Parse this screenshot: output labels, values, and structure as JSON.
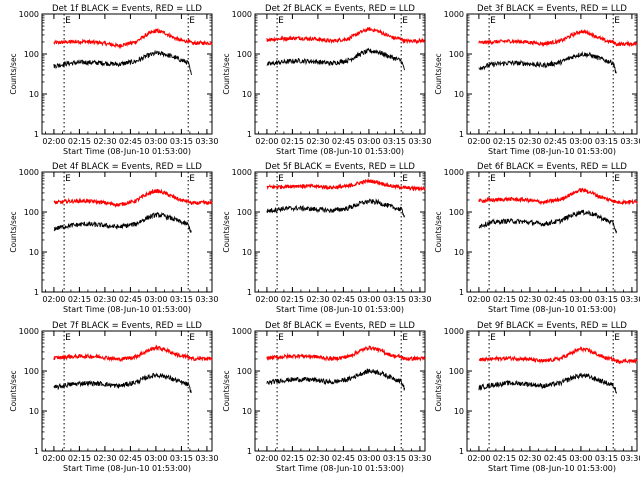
{
  "chart_data": [
    {
      "type": "line",
      "title": "Det 1f BLACK = Events, RED = LLD",
      "ylabel": "Counts/sec",
      "xlabel": "Start Time (08-Jun-10 01:53:00)",
      "yscale": "log",
      "ylim": [
        1,
        1000
      ],
      "ytick_labels": [
        "1",
        "10",
        "100",
        "1000"
      ],
      "xtick_labels": [
        "02:00",
        "02:15",
        "02:30",
        "02:45",
        "03:00",
        "03:15",
        "03:30"
      ],
      "xtick_minutes": [
        7,
        22,
        37,
        52,
        67,
        82,
        97
      ],
      "xlim_minutes": [
        0,
        100
      ],
      "markers": [
        {
          "minute": 13,
          "label": "E"
        },
        {
          "minute": 86,
          "label": "E"
        }
      ],
      "series": [
        {
          "color": "#ff0000",
          "x_minutes": [
            7,
            15,
            25,
            35,
            45,
            55,
            62,
            67,
            72,
            78,
            82,
            86,
            88,
            95,
            100
          ],
          "values": [
            190,
            200,
            205,
            190,
            160,
            200,
            310,
            380,
            340,
            250,
            215,
            210,
            185,
            190,
            190
          ]
        },
        {
          "color": "#000000",
          "x_minutes": [
            7,
            15,
            25,
            35,
            45,
            55,
            62,
            67,
            72,
            78,
            82,
            86,
            88
          ],
          "values": [
            50,
            58,
            62,
            60,
            55,
            65,
            90,
            105,
            100,
            82,
            70,
            60,
            28
          ]
        }
      ]
    },
    {
      "type": "line",
      "title": "Det 2f BLACK = Events, RED = LLD",
      "ylabel": "Counts/sec",
      "xlabel": "Start Time (08-Jun-10 01:53:00)",
      "yscale": "log",
      "ylim": [
        1,
        1000
      ],
      "ytick_labels": [
        "1",
        "10",
        "100",
        "1000"
      ],
      "xtick_labels": [
        "02:00",
        "02:15",
        "02:30",
        "02:45",
        "03:00",
        "03:15",
        "03:30"
      ],
      "xtick_minutes": [
        7,
        22,
        37,
        52,
        67,
        82,
        97
      ],
      "xlim_minutes": [
        0,
        100
      ],
      "markers": [
        {
          "minute": 13,
          "label": "E"
        },
        {
          "minute": 86,
          "label": "E"
        }
      ],
      "series": [
        {
          "color": "#ff0000",
          "x_minutes": [
            7,
            15,
            25,
            35,
            45,
            55,
            62,
            67,
            72,
            78,
            82,
            86,
            88,
            95,
            100
          ],
          "values": [
            230,
            240,
            250,
            240,
            210,
            240,
            350,
            420,
            380,
            290,
            250,
            240,
            210,
            215,
            215
          ]
        },
        {
          "color": "#000000",
          "x_minutes": [
            7,
            15,
            25,
            35,
            45,
            55,
            62,
            67,
            72,
            78,
            82,
            86,
            88
          ],
          "values": [
            55,
            62,
            68,
            65,
            58,
            70,
            100,
            120,
            115,
            90,
            78,
            68,
            40
          ]
        }
      ]
    },
    {
      "type": "line",
      "title": "Det 3f BLACK = Events, RED = LLD",
      "ylabel": "Counts/sec",
      "xlabel": "Start Time (08-Jun-10 01:53:00)",
      "yscale": "log",
      "ylim": [
        1,
        1000
      ],
      "ytick_labels": [
        "1",
        "10",
        "100",
        "1000"
      ],
      "xtick_labels": [
        "02:00",
        "02:15",
        "02:30",
        "02:45",
        "03:00",
        "03:15",
        "03:30"
      ],
      "xtick_minutes": [
        7,
        22,
        37,
        52,
        67,
        82,
        97
      ],
      "xlim_minutes": [
        0,
        100
      ],
      "markers": [
        {
          "minute": 13,
          "label": "E"
        },
        {
          "minute": 86,
          "label": "E"
        }
      ],
      "series": [
        {
          "color": "#ff0000",
          "x_minutes": [
            7,
            15,
            25,
            35,
            45,
            55,
            62,
            67,
            72,
            78,
            82,
            86,
            88,
            95,
            100
          ],
          "values": [
            190,
            200,
            210,
            200,
            180,
            210,
            300,
            370,
            330,
            250,
            210,
            200,
            175,
            180,
            180
          ]
        },
        {
          "color": "#000000",
          "x_minutes": [
            7,
            15,
            25,
            35,
            45,
            55,
            62,
            67,
            72,
            78,
            82,
            86,
            88
          ],
          "values": [
            45,
            55,
            60,
            58,
            52,
            62,
            85,
            100,
            95,
            78,
            68,
            60,
            32
          ]
        }
      ]
    },
    {
      "type": "line",
      "title": "Det 4f BLACK = Events, RED = LLD",
      "ylabel": "Counts/sec",
      "xlabel": "Start Time (08-Jun-10 01:53:00)",
      "yscale": "log",
      "ylim": [
        1,
        1000
      ],
      "ytick_labels": [
        "1",
        "10",
        "100",
        "1000"
      ],
      "xtick_labels": [
        "02:00",
        "02:15",
        "02:30",
        "02:45",
        "03:00",
        "03:15",
        "03:30"
      ],
      "xtick_minutes": [
        7,
        22,
        37,
        52,
        67,
        82,
        97
      ],
      "xlim_minutes": [
        0,
        100
      ],
      "markers": [
        {
          "minute": 13,
          "label": "E"
        },
        {
          "minute": 86,
          "label": "E"
        }
      ],
      "series": [
        {
          "color": "#ff0000",
          "x_minutes": [
            7,
            15,
            25,
            35,
            45,
            55,
            62,
            67,
            72,
            78,
            82,
            86,
            88,
            95,
            100
          ],
          "values": [
            170,
            185,
            190,
            175,
            150,
            190,
            280,
            340,
            300,
            230,
            195,
            185,
            165,
            170,
            165
          ]
        },
        {
          "color": "#000000",
          "x_minutes": [
            7,
            15,
            25,
            35,
            45,
            55,
            62,
            67,
            72,
            78,
            82,
            86,
            88
          ],
          "values": [
            38,
            45,
            50,
            47,
            42,
            50,
            72,
            85,
            80,
            65,
            55,
            48,
            30
          ]
        }
      ]
    },
    {
      "type": "line",
      "title": "Det 5f BLACK = Events, RED = LLD",
      "ylabel": "Counts/sec",
      "xlabel": "Start Time (08-Jun-10 01:53:00)",
      "yscale": "log",
      "ylim": [
        1,
        1000
      ],
      "ytick_labels": [
        "1",
        "10",
        "100",
        "1000"
      ],
      "xtick_labels": [
        "02:00",
        "02:15",
        "02:30",
        "02:45",
        "03:00",
        "03:15",
        "03:30"
      ],
      "xtick_minutes": [
        7,
        22,
        37,
        52,
        67,
        82,
        97
      ],
      "xlim_minutes": [
        0,
        100
      ],
      "markers": [
        {
          "minute": 13,
          "label": "E"
        },
        {
          "minute": 86,
          "label": "E"
        }
      ],
      "series": [
        {
          "color": "#ff0000",
          "x_minutes": [
            7,
            15,
            25,
            35,
            45,
            55,
            62,
            67,
            72,
            78,
            82,
            86,
            88,
            95,
            100
          ],
          "values": [
            420,
            430,
            450,
            440,
            410,
            440,
            540,
            600,
            560,
            470,
            430,
            420,
            400,
            390,
            385
          ]
        },
        {
          "color": "#000000",
          "x_minutes": [
            7,
            15,
            25,
            35,
            45,
            55,
            62,
            67,
            72,
            78,
            82,
            86,
            88
          ],
          "values": [
            105,
            120,
            125,
            118,
            108,
            125,
            165,
            185,
            175,
            145,
            128,
            115,
            80
          ]
        }
      ]
    },
    {
      "type": "line",
      "title": "Det 6f BLACK = Events, RED = LLD",
      "ylabel": "Counts/sec",
      "xlabel": "Start Time (08-Jun-10 01:53:00)",
      "yscale": "log",
      "ylim": [
        1,
        1000
      ],
      "ytick_labels": [
        "1",
        "10",
        "100",
        "1000"
      ],
      "xtick_labels": [
        "02:00",
        "02:15",
        "02:30",
        "02:45",
        "03:00",
        "03:15",
        "03:30"
      ],
      "xtick_minutes": [
        7,
        22,
        37,
        52,
        67,
        82,
        97
      ],
      "xlim_minutes": [
        0,
        100
      ],
      "markers": [
        {
          "minute": 13,
          "label": "E"
        },
        {
          "minute": 86,
          "label": "E"
        }
      ],
      "series": [
        {
          "color": "#ff0000",
          "x_minutes": [
            7,
            15,
            25,
            35,
            45,
            55,
            62,
            67,
            72,
            78,
            82,
            86,
            88,
            95,
            100
          ],
          "values": [
            190,
            200,
            210,
            200,
            175,
            205,
            290,
            360,
            320,
            245,
            210,
            195,
            175,
            180,
            175
          ]
        },
        {
          "color": "#000000",
          "x_minutes": [
            7,
            15,
            25,
            35,
            45,
            55,
            62,
            67,
            72,
            78,
            82,
            86,
            88
          ],
          "values": [
            45,
            55,
            60,
            56,
            50,
            60,
            85,
            100,
            95,
            75,
            62,
            52,
            30
          ]
        }
      ]
    },
    {
      "type": "line",
      "title": "Det 7f BLACK = Events, RED = LLD",
      "ylabel": "Counts/sec",
      "xlabel": "Start Time (08-Jun-10 01:53:00)",
      "yscale": "log",
      "ylim": [
        1,
        1000
      ],
      "ytick_labels": [
        "1",
        "10",
        "100",
        "1000"
      ],
      "xtick_labels": [
        "02:00",
        "02:15",
        "02:30",
        "02:45",
        "03:00",
        "03:15",
        "03:30"
      ],
      "xtick_minutes": [
        7,
        22,
        37,
        52,
        67,
        82,
        97
      ],
      "xlim_minutes": [
        0,
        100
      ],
      "markers": [
        {
          "minute": 13,
          "label": "E"
        },
        {
          "minute": 86,
          "label": "E"
        }
      ],
      "series": [
        {
          "color": "#ff0000",
          "x_minutes": [
            7,
            15,
            25,
            35,
            45,
            55,
            62,
            67,
            72,
            78,
            82,
            86,
            88,
            95,
            100
          ],
          "values": [
            210,
            225,
            235,
            225,
            195,
            225,
            320,
            390,
            350,
            270,
            235,
            225,
            200,
            205,
            205
          ]
        },
        {
          "color": "#000000",
          "x_minutes": [
            7,
            15,
            25,
            35,
            45,
            55,
            62,
            67,
            72,
            78,
            82,
            86,
            88
          ],
          "values": [
            38,
            45,
            50,
            48,
            42,
            52,
            70,
            80,
            75,
            60,
            52,
            45,
            28
          ]
        }
      ]
    },
    {
      "type": "line",
      "title": "Det 8f BLACK = Events, RED = LLD",
      "ylabel": "Counts/sec",
      "xlabel": "Start Time (08-Jun-10 01:53:00)",
      "yscale": "log",
      "ylim": [
        1,
        1000
      ],
      "ytick_labels": [
        "1",
        "10",
        "100",
        "1000"
      ],
      "xtick_labels": [
        "02:00",
        "02:15",
        "02:30",
        "02:45",
        "03:00",
        "03:15",
        "03:30"
      ],
      "xtick_minutes": [
        7,
        22,
        37,
        52,
        67,
        82,
        97
      ],
      "xlim_minutes": [
        0,
        100
      ],
      "markers": [
        {
          "minute": 13,
          "label": "E"
        },
        {
          "minute": 86,
          "label": "E"
        }
      ],
      "series": [
        {
          "color": "#ff0000",
          "x_minutes": [
            7,
            15,
            25,
            35,
            45,
            55,
            62,
            67,
            72,
            78,
            82,
            86,
            88,
            95,
            100
          ],
          "values": [
            210,
            225,
            240,
            230,
            200,
            230,
            320,
            390,
            350,
            270,
            235,
            225,
            200,
            205,
            205
          ]
        },
        {
          "color": "#000000",
          "x_minutes": [
            7,
            15,
            25,
            35,
            45,
            55,
            62,
            67,
            72,
            78,
            82,
            86,
            88
          ],
          "values": [
            50,
            58,
            62,
            60,
            52,
            62,
            85,
            100,
            95,
            75,
            65,
            55,
            35
          ]
        }
      ]
    },
    {
      "type": "line",
      "title": "Det 9f BLACK = Events, RED = LLD",
      "ylabel": "Counts/sec",
      "xlabel": "Start Time (08-Jun-10 01:53:00)",
      "yscale": "log",
      "ylim": [
        1,
        1000
      ],
      "ytick_labels": [
        "1",
        "10",
        "100",
        "1000"
      ],
      "xtick_labels": [
        "02:00",
        "02:15",
        "02:30",
        "02:45",
        "03:00",
        "03:15",
        "03:30"
      ],
      "xtick_minutes": [
        7,
        22,
        37,
        52,
        67,
        82,
        97
      ],
      "xlim_minutes": [
        0,
        100
      ],
      "markers": [
        {
          "minute": 13,
          "label": "E"
        },
        {
          "minute": 86,
          "label": "E"
        }
      ],
      "series": [
        {
          "color": "#ff0000",
          "x_minutes": [
            7,
            15,
            25,
            35,
            45,
            55,
            62,
            67,
            72,
            78,
            82,
            86,
            88,
            95,
            100
          ],
          "values": [
            190,
            200,
            210,
            200,
            175,
            205,
            290,
            360,
            320,
            245,
            210,
            195,
            175,
            180,
            175
          ]
        },
        {
          "color": "#000000",
          "x_minutes": [
            7,
            15,
            25,
            35,
            45,
            55,
            62,
            67,
            72,
            78,
            82,
            86,
            88
          ],
          "values": [
            38,
            45,
            50,
            48,
            42,
            50,
            68,
            78,
            72,
            58,
            50,
            44,
            30
          ]
        }
      ]
    }
  ]
}
